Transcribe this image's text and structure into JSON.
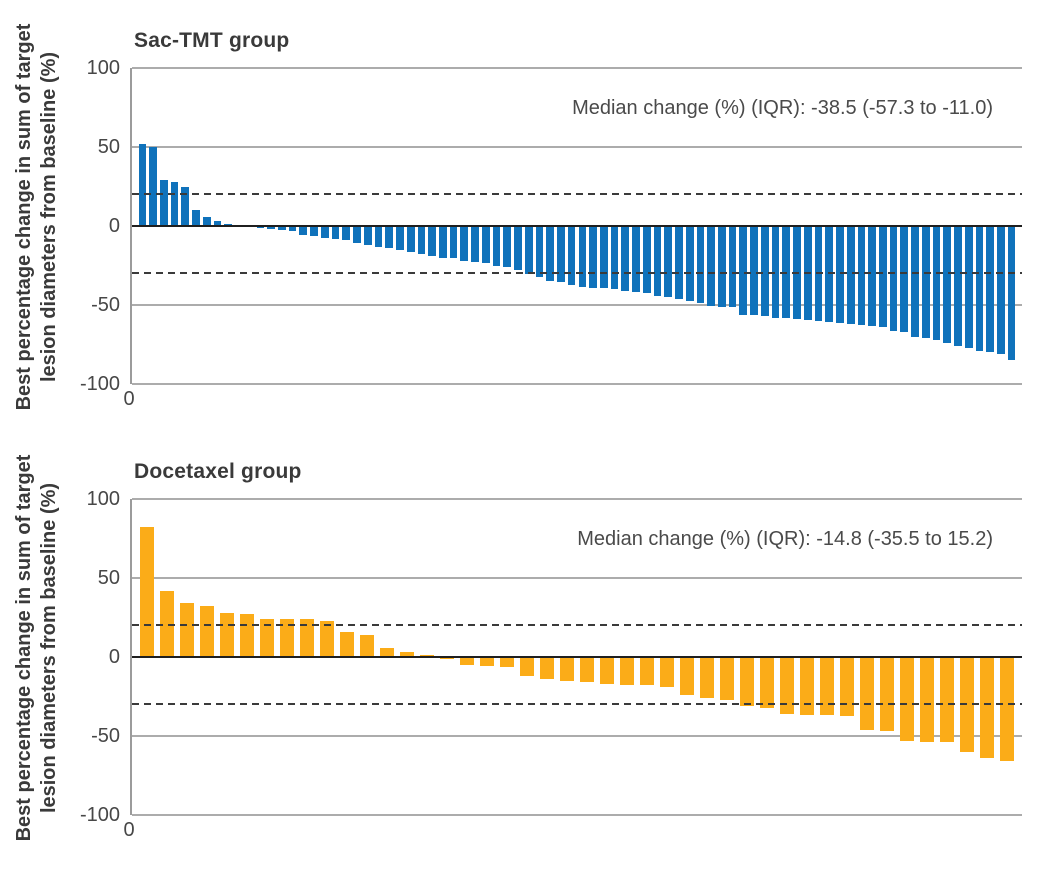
{
  "figure": {
    "y_axis_title_line1": "Best percentage change in sum of target",
    "y_axis_title_line2": "lesion diameters from baseline (%)"
  },
  "chart_data": [
    {
      "type": "bar",
      "subtype": "waterfall",
      "title": "Sac-TMT group",
      "annotation": "Median change (%) (IQR): -38.5 (-57.3 to -11.0)",
      "median_change_pct": -38.5,
      "iqr": [
        -57.3,
        -11.0
      ],
      "ylabel_line1": "Best percentage change in sum of target",
      "ylabel_line2": "lesion diameters from baseline (%)",
      "x_tick": "0",
      "y_ticks": [
        100,
        50,
        0,
        -50,
        -100
      ],
      "ylim": [
        -100,
        100
      ],
      "reference_lines": [
        20,
        -30
      ],
      "grid": "horizontal",
      "legend": "none",
      "bar_color": "#0F72BB",
      "values": [
        52,
        50,
        29,
        28,
        25,
        10,
        6,
        3,
        1.5,
        0.5,
        -0.5,
        -1.5,
        -2,
        -2.5,
        -3,
        -5.5,
        -6.5,
        -7.5,
        -8.5,
        -9,
        -10.5,
        -12,
        -13,
        -14,
        -15.5,
        -16.5,
        -17.5,
        -19,
        -20,
        -20.5,
        -22,
        -23,
        -23.5,
        -25,
        -26,
        -28,
        -30.5,
        -32.5,
        -34.5,
        -35.5,
        -37.5,
        -38.5,
        -39,
        -39.5,
        -40,
        -41,
        -42,
        -42.5,
        -44,
        -45,
        -46.5,
        -47.5,
        -49,
        -50.5,
        -51,
        -51.5,
        -56.5,
        -56.5,
        -57,
        -58,
        -58.5,
        -59,
        -59.5,
        -60,
        -60.5,
        -61.5,
        -62,
        -62.5,
        -63.5,
        -64,
        -66.5,
        -67,
        -70,
        -71,
        -72,
        -74,
        -76,
        -77.5,
        -79,
        -80,
        -81,
        -84.5
      ]
    },
    {
      "type": "bar",
      "subtype": "waterfall",
      "title": "Docetaxel group",
      "annotation": "Median change (%) (IQR): -14.8 (-35.5 to 15.2)",
      "median_change_pct": -14.8,
      "iqr": [
        -35.5,
        15.2
      ],
      "ylabel_line1": "Best percentage change in sum of target",
      "ylabel_line2": "lesion diameters from baseline (%)",
      "x_tick": "0",
      "y_ticks": [
        100,
        50,
        0,
        -50,
        -100
      ],
      "ylim": [
        -100,
        100
      ],
      "reference_lines": [
        20,
        -30
      ],
      "grid": "horizontal",
      "legend": "none",
      "bar_color": "#FBAC18",
      "values": [
        82,
        42,
        34,
        32,
        28,
        27,
        24,
        24,
        24,
        23,
        16,
        14,
        6,
        3,
        1,
        -1.5,
        -5,
        -6,
        -6.5,
        -12,
        -14,
        -15,
        -16,
        -17,
        -17.5,
        -18,
        -19,
        -24,
        -26,
        -27,
        -31,
        -32,
        -36,
        -37,
        -37,
        -37.5,
        -46,
        -47,
        -53,
        -53.5,
        -54,
        -60,
        -64,
        -66
      ]
    }
  ]
}
